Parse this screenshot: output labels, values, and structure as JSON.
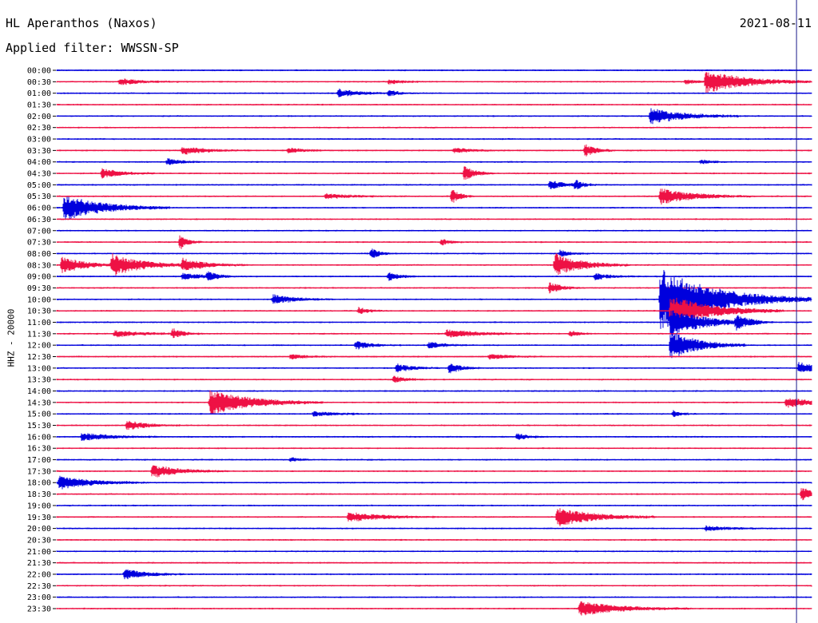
{
  "header": {
    "station": "HL Aperanthos (Naxos)",
    "date": "2021-08-11",
    "filter": "Applied filter: WWSSN-SP"
  },
  "chart_data": {
    "type": "line",
    "channel_label": "HHZ - 20000",
    "rows": [
      "00:00",
      "00:30",
      "01:00",
      "01:30",
      "02:00",
      "02:30",
      "03:00",
      "03:30",
      "04:00",
      "04:30",
      "05:00",
      "05:30",
      "06:00",
      "06:30",
      "07:00",
      "07:30",
      "08:00",
      "08:30",
      "09:00",
      "09:30",
      "10:00",
      "10:30",
      "11:00",
      "11:30",
      "12:00",
      "12:30",
      "13:00",
      "13:30",
      "14:00",
      "14:30",
      "15:00",
      "15:30",
      "16:00",
      "16:30",
      "17:00",
      "17:30",
      "18:00",
      "18:30",
      "19:00",
      "19:30",
      "20:00",
      "20:30",
      "21:00",
      "21:30",
      "22:00",
      "22:30",
      "23:00",
      "23:30"
    ],
    "colors": [
      "#0000dd",
      "#ee1144"
    ],
    "row_minutes": 30,
    "current_time_minute": 29.4,
    "events": [
      {
        "row": 1,
        "minute": 25.8,
        "amp": 14,
        "dur": 1.5
      },
      {
        "row": 1,
        "minute": 2.5,
        "amp": 4,
        "dur": 0.8
      },
      {
        "row": 1,
        "minute": 13.2,
        "amp": 3,
        "dur": 0.5
      },
      {
        "row": 1,
        "minute": 25.0,
        "amp": 3,
        "dur": 0.4
      },
      {
        "row": 2,
        "minute": 11.2,
        "amp": 5,
        "dur": 0.8
      },
      {
        "row": 2,
        "minute": 13.2,
        "amp": 3,
        "dur": 0.4
      },
      {
        "row": 4,
        "minute": 23.6,
        "amp": 10,
        "dur": 1.2
      },
      {
        "row": 7,
        "minute": 5.0,
        "amp": 5,
        "dur": 0.9
      },
      {
        "row": 7,
        "minute": 9.2,
        "amp": 3,
        "dur": 0.6
      },
      {
        "row": 7,
        "minute": 15.8,
        "amp": 3,
        "dur": 0.7
      },
      {
        "row": 7,
        "minute": 21.0,
        "amp": 8,
        "dur": 0.4
      },
      {
        "row": 8,
        "minute": 4.4,
        "amp": 4,
        "dur": 0.5
      },
      {
        "row": 8,
        "minute": 25.6,
        "amp": 3,
        "dur": 0.4
      },
      {
        "row": 9,
        "minute": 1.8,
        "amp": 6,
        "dur": 0.7
      },
      {
        "row": 9,
        "minute": 16.2,
        "amp": 9,
        "dur": 0.4
      },
      {
        "row": 10,
        "minute": 19.6,
        "amp": 6,
        "dur": 0.5
      },
      {
        "row": 10,
        "minute": 20.6,
        "amp": 6,
        "dur": 0.3
      },
      {
        "row": 11,
        "minute": 10.7,
        "amp": 3,
        "dur": 1.0
      },
      {
        "row": 11,
        "minute": 15.7,
        "amp": 9,
        "dur": 0.3
      },
      {
        "row": 11,
        "minute": 24.0,
        "amp": 10,
        "dur": 1.2
      },
      {
        "row": 12,
        "minute": 0.3,
        "amp": 16,
        "dur": 1.4
      },
      {
        "row": 15,
        "minute": 4.9,
        "amp": 9,
        "dur": 0.3
      },
      {
        "row": 15,
        "minute": 15.3,
        "amp": 4,
        "dur": 0.3
      },
      {
        "row": 16,
        "minute": 12.5,
        "amp": 7,
        "dur": 0.3
      },
      {
        "row": 16,
        "minute": 20.0,
        "amp": 4,
        "dur": 0.4
      },
      {
        "row": 17,
        "minute": 0.2,
        "amp": 10,
        "dur": 0.9
      },
      {
        "row": 17,
        "minute": 2.2,
        "amp": 13,
        "dur": 1.2
      },
      {
        "row": 17,
        "minute": 5.0,
        "amp": 7,
        "dur": 0.9
      },
      {
        "row": 17,
        "minute": 19.8,
        "amp": 14,
        "dur": 1.0
      },
      {
        "row": 18,
        "minute": 5.0,
        "amp": 4,
        "dur": 0.8
      },
      {
        "row": 18,
        "minute": 6.0,
        "amp": 6,
        "dur": 0.3
      },
      {
        "row": 18,
        "minute": 13.2,
        "amp": 5,
        "dur": 0.4
      },
      {
        "row": 18,
        "minute": 21.4,
        "amp": 4,
        "dur": 0.6
      },
      {
        "row": 19,
        "minute": 19.6,
        "amp": 7,
        "dur": 0.4
      },
      {
        "row": 20,
        "minute": 8.6,
        "amp": 6,
        "dur": 0.8
      },
      {
        "row": 20,
        "minute": 24.0,
        "amp": 40,
        "dur": 2.0
      },
      {
        "row": 21,
        "minute": 12.0,
        "amp": 4,
        "dur": 0.4
      },
      {
        "row": 21,
        "minute": 24.4,
        "amp": 20,
        "dur": 1.5
      },
      {
        "row": 22,
        "minute": 24.4,
        "amp": 18,
        "dur": 1.2
      },
      {
        "row": 22,
        "minute": 27.0,
        "amp": 8,
        "dur": 0.5
      },
      {
        "row": 23,
        "minute": 2.3,
        "amp": 4,
        "dur": 1.0
      },
      {
        "row": 23,
        "minute": 4.6,
        "amp": 6,
        "dur": 0.4
      },
      {
        "row": 23,
        "minute": 15.5,
        "amp": 5,
        "dur": 1.2
      },
      {
        "row": 23,
        "minute": 20.4,
        "amp": 4,
        "dur": 0.3
      },
      {
        "row": 24,
        "minute": 11.9,
        "amp": 5,
        "dur": 0.6
      },
      {
        "row": 24,
        "minute": 14.8,
        "amp": 4,
        "dur": 0.6
      },
      {
        "row": 24,
        "minute": 24.4,
        "amp": 18,
        "dur": 1.0
      },
      {
        "row": 25,
        "minute": 9.3,
        "amp": 3,
        "dur": 0.6
      },
      {
        "row": 25,
        "minute": 17.2,
        "amp": 3,
        "dur": 0.8
      },
      {
        "row": 26,
        "minute": 13.5,
        "amp": 5,
        "dur": 0.6
      },
      {
        "row": 26,
        "minute": 15.6,
        "amp": 7,
        "dur": 0.4
      },
      {
        "row": 26,
        "minute": 29.5,
        "amp": 8,
        "dur": 0.6
      },
      {
        "row": 27,
        "minute": 13.4,
        "amp": 5,
        "dur": 0.4
      },
      {
        "row": 29,
        "minute": 6.1,
        "amp": 16,
        "dur": 1.5
      },
      {
        "row": 29,
        "minute": 29.0,
        "amp": 6,
        "dur": 1.0
      },
      {
        "row": 30,
        "minute": 10.2,
        "amp": 3,
        "dur": 0.8
      },
      {
        "row": 30,
        "minute": 24.5,
        "amp": 4,
        "dur": 0.3
      },
      {
        "row": 31,
        "minute": 2.8,
        "amp": 6,
        "dur": 0.7
      },
      {
        "row": 32,
        "minute": 1.0,
        "amp": 5,
        "dur": 1.0
      },
      {
        "row": 32,
        "minute": 18.3,
        "amp": 4,
        "dur": 0.4
      },
      {
        "row": 34,
        "minute": 9.3,
        "amp": 3,
        "dur": 0.3
      },
      {
        "row": 35,
        "minute": 3.8,
        "amp": 8,
        "dur": 1.0
      },
      {
        "row": 36,
        "minute": 0.1,
        "amp": 8,
        "dur": 1.2
      },
      {
        "row": 37,
        "minute": 29.6,
        "amp": 8,
        "dur": 0.6
      },
      {
        "row": 39,
        "minute": 11.6,
        "amp": 6,
        "dur": 1.2
      },
      {
        "row": 39,
        "minute": 19.9,
        "amp": 12,
        "dur": 1.3
      },
      {
        "row": 40,
        "minute": 25.8,
        "amp": 3,
        "dur": 0.9
      },
      {
        "row": 44,
        "minute": 2.7,
        "amp": 7,
        "dur": 0.8
      },
      {
        "row": 47,
        "minute": 20.8,
        "amp": 9,
        "dur": 1.5
      }
    ]
  }
}
